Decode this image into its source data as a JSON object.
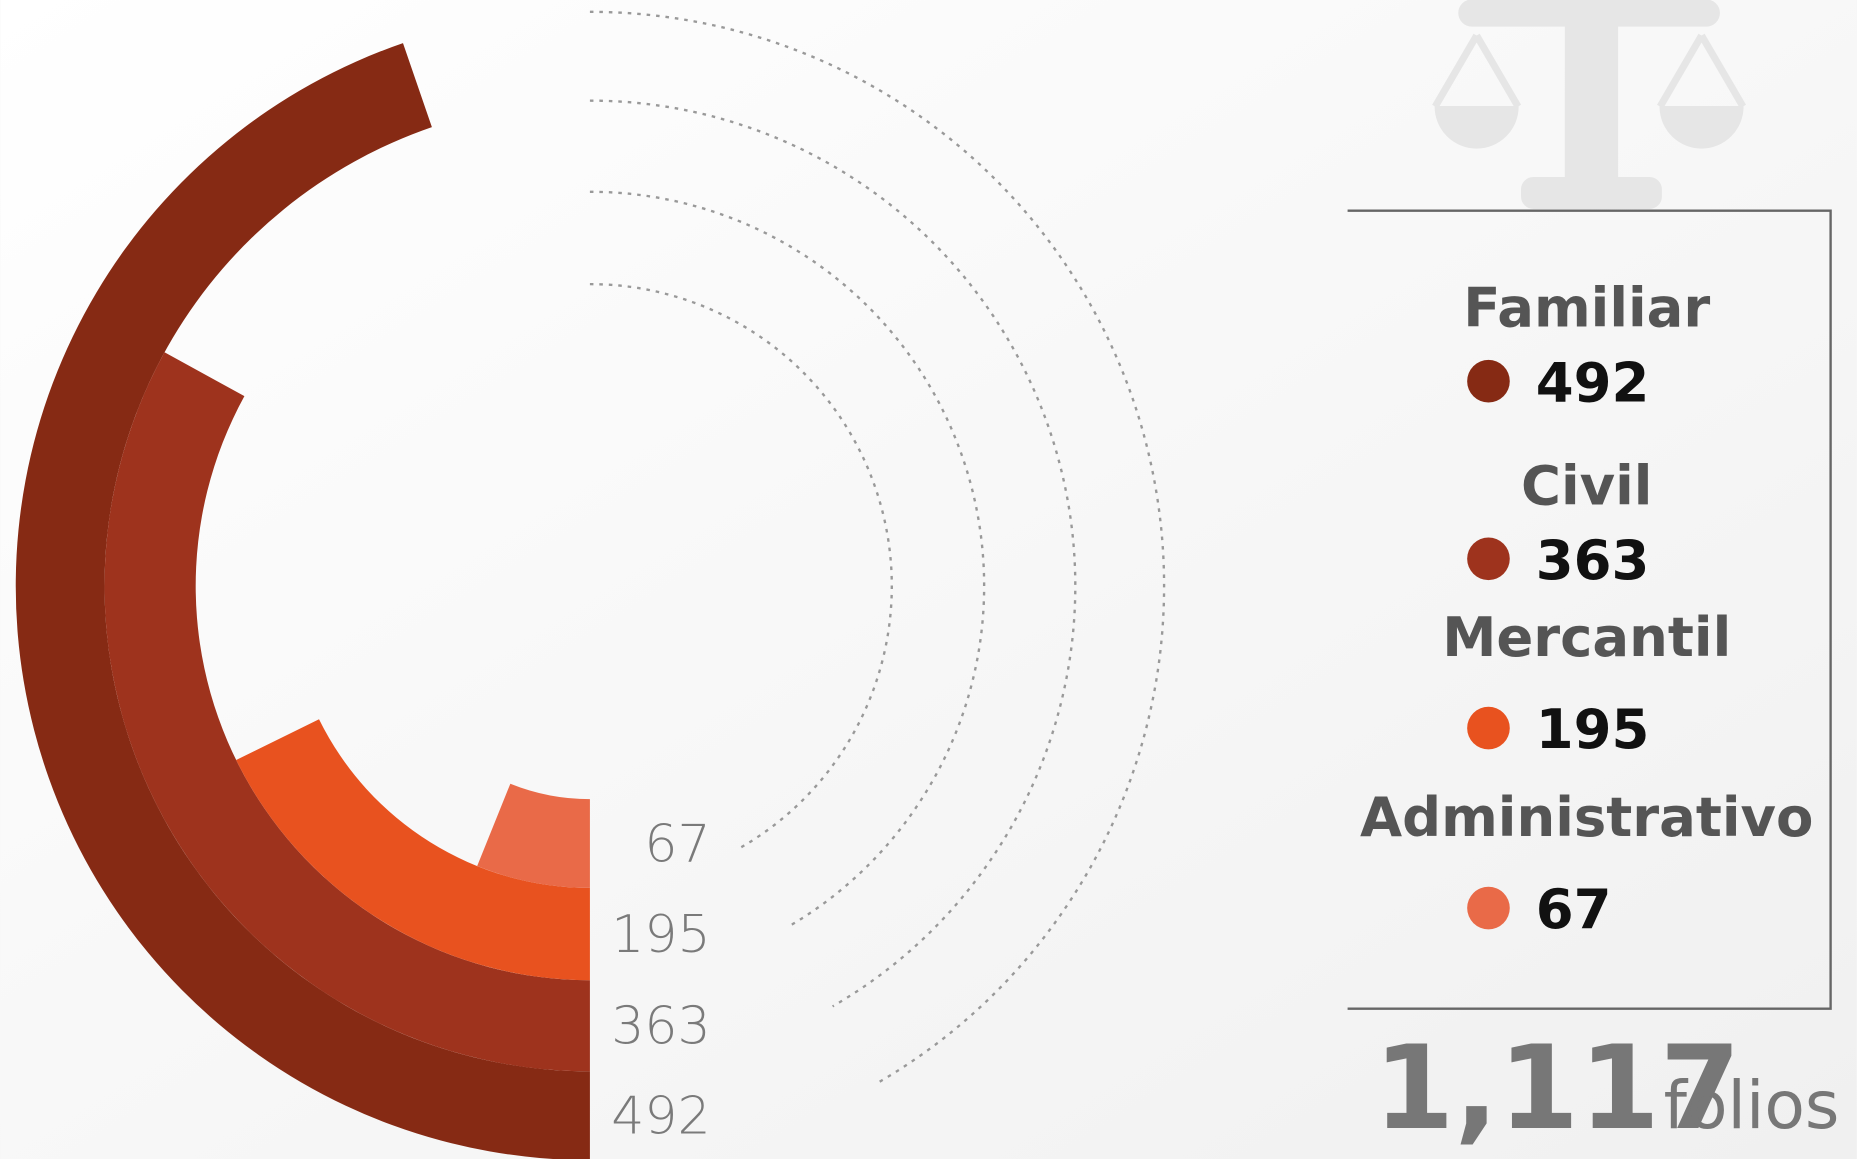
{
  "chart_data": {
    "type": "radial-bar",
    "categories": [
      "Familiar",
      "Civil",
      "Mercantil",
      "Administrativo"
    ],
    "series": [
      {
        "name": "Folios",
        "values": [
          492,
          363,
          195,
          67
        ]
      }
    ],
    "colors": [
      "#862a14",
      "#9e331d",
      "#e8521f",
      "#e96a48"
    ],
    "total": {
      "value": 1117,
      "label": "1,117"
    },
    "total_unit": "folios"
  }
}
